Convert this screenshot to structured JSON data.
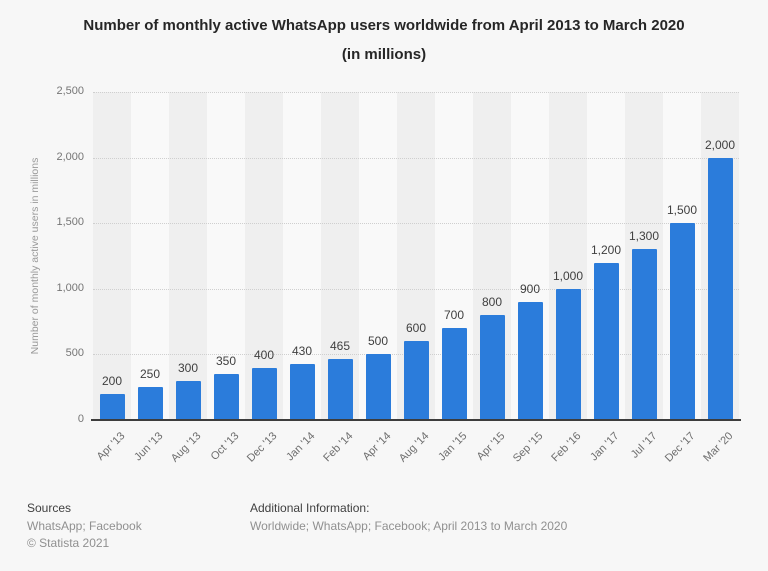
{
  "title": {
    "line1": "Number of monthly active WhatsApp users worldwide from April 2013 to March 2020",
    "line2": "(in millions)"
  },
  "chart_data": {
    "type": "bar",
    "title": "Number of monthly active WhatsApp users worldwide from April 2013 to March 2020 (in millions)",
    "xlabel": "",
    "ylabel": "Number of monthly active users in millions",
    "ylim": [
      0,
      2500
    ],
    "yticks": [
      0,
      500,
      1000,
      1500,
      2000,
      2500
    ],
    "ytick_labels": [
      "0",
      "500",
      "1,000",
      "1,500",
      "2,000",
      "2,500"
    ],
    "categories": [
      "Apr '13",
      "Jun '13",
      "Aug '13",
      "Oct '13",
      "Dec '13",
      "Jan '14",
      "Feb '14",
      "Apr '14",
      "Aug '14",
      "Jan '15",
      "Apr '15",
      "Sep '15",
      "Feb '16",
      "Jan '17",
      "Jul '17",
      "Dec '17",
      "Mar '20"
    ],
    "values": [
      200,
      250,
      300,
      350,
      400,
      430,
      465,
      500,
      600,
      700,
      800,
      900,
      1000,
      1200,
      1300,
      1500,
      2000
    ],
    "value_labels": [
      "200",
      "250",
      "300",
      "350",
      "400",
      "430",
      "465",
      "500",
      "600",
      "700",
      "800",
      "900",
      "1,000",
      "1,200",
      "1,300",
      "1,500",
      "2,000"
    ],
    "grid": true,
    "legend": false
  },
  "colors": {
    "background": "#f7f7f7",
    "stripe_dark": "#efefef",
    "stripe_light": "#f9f9f9",
    "bar": "#2b7cdb",
    "grid": "#cfcfcf",
    "axis": "#3d3d3d"
  },
  "footer": {
    "sources_label": "Sources",
    "sources_text": "WhatsApp; Facebook",
    "copyright": "© Statista 2021",
    "additional_label": "Additional Information:",
    "additional_text": "Worldwide; WhatsApp; Facebook; April 2013 to March 2020"
  }
}
